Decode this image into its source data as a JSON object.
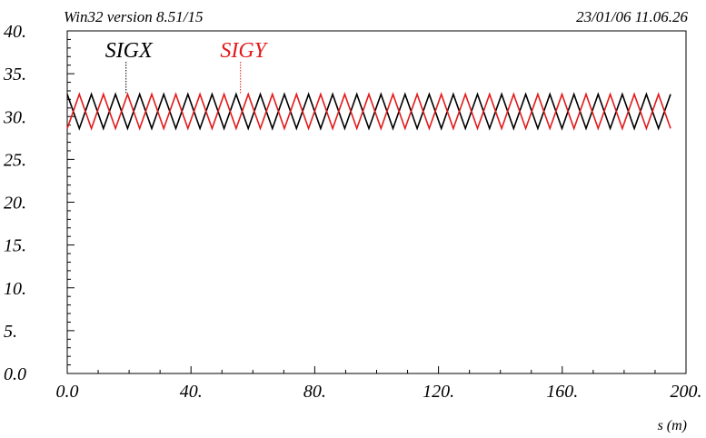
{
  "header": {
    "version": "Win32 version 8.51/15",
    "timestamp": "23/01/06  11.06.26"
  },
  "chart_data": {
    "type": "line",
    "xlabel": "s (m)",
    "ylabel": "",
    "xlim": [
      0,
      200
    ],
    "ylim": [
      0,
      40
    ],
    "x_ticks": [
      "0.0",
      "40.",
      "80.",
      "120.",
      "160.",
      "200."
    ],
    "x_tick_values": [
      0,
      40,
      80,
      120,
      160,
      200
    ],
    "y_ticks": [
      "0.0",
      "5.",
      "10.",
      "15.",
      "20.",
      "25.",
      "30.",
      "35.",
      "40."
    ],
    "y_tick_values": [
      0,
      5,
      10,
      15,
      20,
      25,
      30,
      35,
      40
    ],
    "grid": false,
    "series": [
      {
        "name": "SIGX",
        "color": "#000000",
        "label_x": 19,
        "x": [
          0.0,
          3.9,
          7.8,
          11.7,
          15.6,
          19.5,
          23.4,
          27.3,
          31.2,
          35.1,
          39.0,
          42.9,
          46.8,
          50.7,
          54.6,
          58.5,
          62.4,
          66.3,
          70.2,
          74.1,
          78.0,
          81.9,
          85.8,
          89.7,
          93.6,
          97.5,
          101.4,
          105.3,
          109.2,
          113.1,
          117.0,
          120.9,
          124.8,
          128.7,
          132.6,
          136.5,
          140.4,
          144.3,
          148.2,
          152.1,
          156.0,
          159.9,
          163.8,
          167.7,
          171.6,
          175.5,
          179.4,
          183.3,
          187.2,
          191.1,
          195.0
        ],
        "y": [
          32.6,
          28.6,
          32.6,
          28.6,
          32.6,
          28.6,
          32.6,
          28.6,
          32.6,
          28.6,
          32.6,
          28.6,
          32.6,
          28.6,
          32.6,
          28.6,
          32.6,
          28.6,
          32.6,
          28.6,
          32.6,
          28.6,
          32.6,
          28.6,
          32.6,
          28.6,
          32.6,
          28.6,
          32.6,
          28.6,
          32.6,
          28.6,
          32.6,
          28.6,
          32.6,
          28.6,
          32.6,
          28.6,
          32.6,
          28.6,
          32.6,
          28.6,
          32.6,
          28.6,
          32.6,
          28.6,
          32.6,
          28.6,
          32.6,
          28.6,
          32.6
        ]
      },
      {
        "name": "SIGY",
        "color": "#e31a1a",
        "label_x": 56,
        "x": [
          0.0,
          3.9,
          7.8,
          11.7,
          15.6,
          19.5,
          23.4,
          27.3,
          31.2,
          35.1,
          39.0,
          42.9,
          46.8,
          50.7,
          54.6,
          58.5,
          62.4,
          66.3,
          70.2,
          74.1,
          78.0,
          81.9,
          85.8,
          89.7,
          93.6,
          97.5,
          101.4,
          105.3,
          109.2,
          113.1,
          117.0,
          120.9,
          124.8,
          128.7,
          132.6,
          136.5,
          140.4,
          144.3,
          148.2,
          152.1,
          156.0,
          159.9,
          163.8,
          167.7,
          171.6,
          175.5,
          179.4,
          183.3,
          187.2,
          191.1,
          195.0
        ],
        "y": [
          28.6,
          32.6,
          28.6,
          32.6,
          28.6,
          32.6,
          28.6,
          32.6,
          28.6,
          32.6,
          28.6,
          32.6,
          28.6,
          32.6,
          28.6,
          32.6,
          28.6,
          32.6,
          28.6,
          32.6,
          28.6,
          32.6,
          28.6,
          32.6,
          28.6,
          32.6,
          28.6,
          32.6,
          28.6,
          32.6,
          28.6,
          32.6,
          28.6,
          32.6,
          28.6,
          32.6,
          28.6,
          32.6,
          28.6,
          32.6,
          28.6,
          32.6,
          28.6,
          32.6,
          28.6,
          32.6,
          28.6,
          32.6,
          28.6,
          32.6,
          28.6
        ]
      }
    ]
  }
}
